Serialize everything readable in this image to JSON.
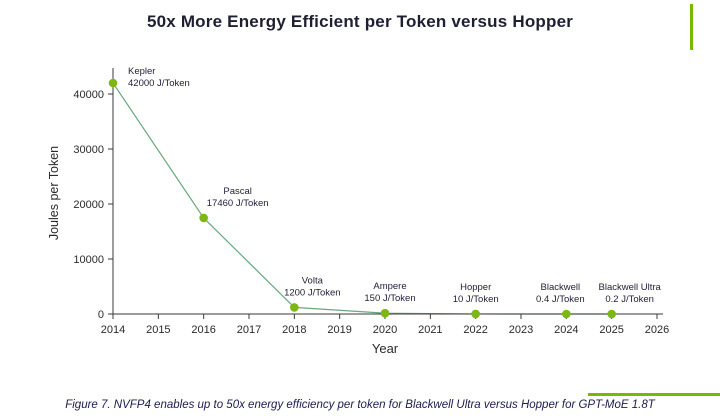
{
  "page": {
    "caption": "Figure 7. NVFP4 enables up to 50x energy efficiency per token for Blackwell Ultra versus Hopper for GPT-MoE 1.8T"
  },
  "colors": {
    "accent_green": "#76b900",
    "line": "#69a783",
    "point": "#7db713",
    "title_text": "#1f1f33",
    "caption_text": "#1c1c4e",
    "axis_text": "#2a2a2a",
    "label_text": "#22223a"
  },
  "chart_data": {
    "type": "line",
    "title": "50x More Energy Efficient per Token versus Hopper",
    "xlabel": "Year",
    "ylabel": "Joules per Token",
    "xlim": [
      2014,
      2026
    ],
    "ylim": [
      0,
      44000
    ],
    "x_ticks": [
      2014,
      2015,
      2016,
      2017,
      2018,
      2019,
      2020,
      2021,
      2022,
      2023,
      2024,
      2025,
      2026
    ],
    "y_ticks": [
      0,
      10000,
      20000,
      30000,
      40000
    ],
    "grid": false,
    "legend": false,
    "points": [
      {
        "name": "Kepler",
        "year": 2014,
        "value": 42000,
        "label": "42000 J/Token",
        "label_pos": "right",
        "label_dx": 0
      },
      {
        "name": "Pascal",
        "year": 2016,
        "value": 17460,
        "label": "17460 J/Token",
        "label_pos": "above",
        "label_dx": 34
      },
      {
        "name": "Volta",
        "year": 2018,
        "value": 1200,
        "label": "1200 J/Token",
        "label_pos": "above",
        "label_dx": 18
      },
      {
        "name": "Ampere",
        "year": 2020,
        "value": 150,
        "label": "150 J/Token",
        "label_pos": "above",
        "label_dx": 5
      },
      {
        "name": "Hopper",
        "year": 2022,
        "value": 10,
        "label": "10 J/Token",
        "label_pos": "above",
        "label_dx": 0
      },
      {
        "name": "Blackwell",
        "year": 2024,
        "value": 0.4,
        "label": "0.4 J/Token",
        "label_pos": "above",
        "label_dx": -6
      },
      {
        "name": "Blackwell Ultra",
        "year": 2025,
        "value": 0.2,
        "label": "0.2 J/Token",
        "label_pos": "above",
        "label_dx": 18
      }
    ]
  }
}
